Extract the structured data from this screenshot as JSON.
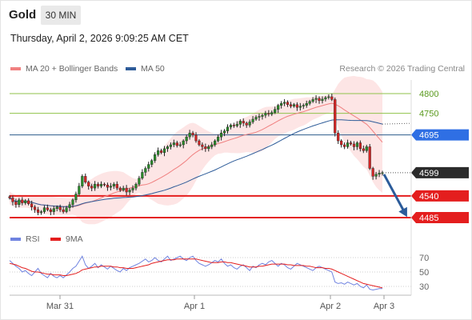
{
  "header": {
    "title": "Gold",
    "timeframe_label": "30 MIN",
    "datetime": "Thursday, April 2, 2026 9:09:25 AM CET"
  },
  "legend": {
    "ma20_label": "MA 20 + Bollinger Bands",
    "ma50_label": "MA 50",
    "credit": "Research © 2026 Trading Central",
    "rsi_label": "RSI",
    "rsi_ma_label": "9MA"
  },
  "colors": {
    "ma20": "#f08080",
    "ma50": "#2e5c99",
    "bands": "#fde0e0",
    "resistance": "#8fc24a",
    "pivot": "#2b5b8c",
    "support": "#e41e1e",
    "current": "#2b2b2b",
    "pivot_tag": "#2f6fe4",
    "arrow": "#2b5b9a",
    "candle_up": "#2a8a2a",
    "candle_down": "#d42424",
    "rsi": "#6f83e0",
    "rsi_ma": "#e41e1e"
  },
  "chart_data": [
    {
      "type": "candlestick",
      "x_ticks": [
        "Mar 31",
        "Apr 1",
        "Apr 2",
        "Apr 3"
      ],
      "levels": [
        {
          "value": 4800,
          "label": "4800",
          "kind": "resistance"
        },
        {
          "value": 4750,
          "label": "4750",
          "kind": "resistance"
        },
        {
          "value": 4695,
          "label": "4695",
          "kind": "pivot"
        },
        {
          "value": 4599,
          "label": "4599",
          "kind": "current"
        },
        {
          "value": 4540,
          "label": "4540",
          "kind": "support"
        },
        {
          "value": 4485,
          "label": "4485",
          "kind": "support"
        }
      ],
      "ylim": [
        4470,
        4830
      ],
      "close_series": [
        4535,
        4525,
        4518,
        4530,
        4522,
        4528,
        4520,
        4512,
        4505,
        4498,
        4500,
        4510,
        4505,
        4500,
        4508,
        4512,
        4505,
        4500,
        4510,
        4518,
        4530,
        4545,
        4565,
        4590,
        4575,
        4565,
        4560,
        4570,
        4565,
        4570,
        4568,
        4562,
        4565,
        4570,
        4560,
        4555,
        4560,
        4550,
        4555,
        4560,
        4570,
        4585,
        4600,
        4610,
        4620,
        4630,
        4645,
        4655,
        4650,
        4660,
        4665,
        4670,
        4675,
        4668,
        4670,
        4680,
        4690,
        4700,
        4695,
        4680,
        4670,
        4665,
        4660,
        4665,
        4670,
        4680,
        4690,
        4700,
        4705,
        4715,
        4720,
        4718,
        4722,
        4730,
        4725,
        4720,
        4728,
        4735,
        4740,
        4742,
        4745,
        4750,
        4748,
        4752,
        4760,
        4770,
        4775,
        4778,
        4772,
        4768,
        4772,
        4765,
        4768,
        4770,
        4775,
        4780,
        4785,
        4788,
        4782,
        4786,
        4790,
        4792,
        4785,
        4700,
        4680,
        4670,
        4665,
        4675,
        4672,
        4665,
        4675,
        4660,
        4655,
        4665,
        4610,
        4590,
        4595,
        4598,
        4599
      ]
    },
    {
      "type": "line",
      "name": "RSI",
      "y_ticks": [
        70,
        50,
        30
      ],
      "ylim": [
        20,
        80
      ],
      "rsi": [
        66,
        62,
        58,
        55,
        50,
        52,
        48,
        45,
        50,
        55,
        48,
        45,
        42,
        48,
        44,
        42,
        45,
        42,
        46,
        50,
        55,
        58,
        65,
        72,
        60,
        55,
        58,
        62,
        56,
        60,
        57,
        54,
        58,
        55,
        52,
        50,
        55,
        52,
        56,
        58,
        60,
        62,
        65,
        68,
        64,
        66,
        70,
        66,
        64,
        68,
        72,
        66,
        68,
        70,
        72,
        68,
        66,
        70,
        72,
        66,
        62,
        60,
        58,
        60,
        63,
        66,
        64,
        68,
        62,
        58,
        60,
        56,
        54,
        58,
        60,
        56,
        52,
        58,
        56,
        60,
        62,
        60,
        64,
        66,
        62,
        58,
        62,
        60,
        56,
        54,
        58,
        62,
        60,
        58,
        56,
        54,
        52,
        56,
        58,
        56,
        54,
        52,
        50,
        36,
        34,
        35,
        33,
        36,
        34,
        32,
        34,
        30,
        28,
        32,
        26,
        25,
        26,
        27,
        27
      ],
      "ma": [
        62,
        61,
        60,
        58,
        56,
        55,
        53,
        51,
        50,
        50,
        49,
        48,
        47,
        47,
        46,
        46,
        46,
        45,
        45,
        46,
        47,
        48,
        50,
        53,
        54,
        55,
        56,
        57,
        57,
        58,
        58,
        58,
        58,
        57,
        57,
        56,
        56,
        55,
        55,
        55,
        56,
        57,
        58,
        59,
        60,
        62,
        63,
        64,
        65,
        66,
        67,
        67,
        67,
        68,
        68,
        68,
        68,
        68,
        68,
        68,
        67,
        66,
        65,
        64,
        63,
        63,
        63,
        64,
        64,
        63,
        63,
        62,
        61,
        60,
        59,
        58,
        57,
        57,
        57,
        58,
        58,
        59,
        60,
        61,
        61,
        61,
        61,
        61,
        60,
        60,
        59,
        59,
        59,
        59,
        58,
        58,
        57,
        56,
        56,
        56,
        55,
        55,
        54,
        52,
        50,
        48,
        46,
        44,
        42,
        40,
        38,
        36,
        34,
        33,
        32,
        31,
        30,
        29,
        28
      ]
    }
  ]
}
